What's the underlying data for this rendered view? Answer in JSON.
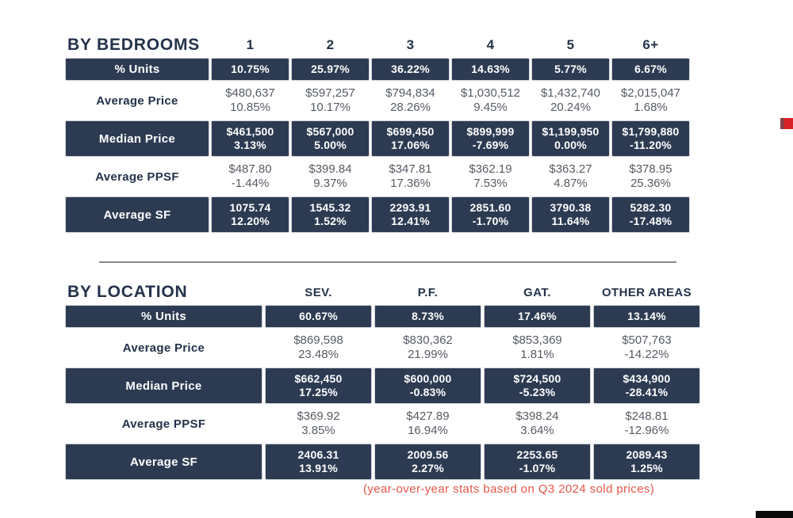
{
  "footer_note": "(year-over-year stats based on Q3 2024 sold prices)",
  "colors": {
    "navy": "#2d3b52",
    "title_navy": "#24324a",
    "note_red": "#e5554a",
    "accent_red": "#da2127",
    "divider_gray": "#85878c",
    "body_gray": "#565b64"
  },
  "sections": [
    {
      "id": "by-bedrooms",
      "title": "BY BEDROOMS",
      "columns": [
        "1",
        "2",
        "3",
        "4",
        "5",
        "6+"
      ],
      "rows": [
        {
          "label": "% Units",
          "style": "dark",
          "cells": [
            [
              "10.75%"
            ],
            [
              "25.97%"
            ],
            [
              "36.22%"
            ],
            [
              "14.63%"
            ],
            [
              "5.77%"
            ],
            [
              "6.67%"
            ]
          ]
        },
        {
          "label": "Average Price",
          "style": "light",
          "cells": [
            [
              "$480,637",
              "10.85%"
            ],
            [
              "$597,257",
              "10.17%"
            ],
            [
              "$794,834",
              "28.26%"
            ],
            [
              "$1,030,512",
              "9.45%"
            ],
            [
              "$1,432,740",
              "20.24%"
            ],
            [
              "$2,015,047",
              "1.68%"
            ]
          ]
        },
        {
          "label": "Median Price",
          "style": "dark",
          "cells": [
            [
              "$461,500",
              "3.13%"
            ],
            [
              "$567,000",
              "5.00%"
            ],
            [
              "$699,450",
              "17.06%"
            ],
            [
              "$899,999",
              "-7.69%"
            ],
            [
              "$1,199,950",
              "0.00%"
            ],
            [
              "$1,799,880",
              "-11.20%"
            ]
          ]
        },
        {
          "label": "Average PPSF",
          "style": "light",
          "cells": [
            [
              "$487.80",
              "-1.44%"
            ],
            [
              "$399.84",
              "9.37%"
            ],
            [
              "$347.81",
              "17.36%"
            ],
            [
              "$362.19",
              "7.53%"
            ],
            [
              "$363.27",
              "4.87%"
            ],
            [
              "$378.95",
              "25.36%"
            ]
          ]
        },
        {
          "label": "Average SF",
          "style": "dark",
          "cells": [
            [
              "1075.74",
              "12.20%"
            ],
            [
              "1545.32",
              "1.52%"
            ],
            [
              "2293.91",
              "12.41%"
            ],
            [
              "2851.60",
              "-1.70%"
            ],
            [
              "3790.38",
              "11.64%"
            ],
            [
              "5282.30",
              "-17.48%"
            ]
          ]
        }
      ]
    },
    {
      "id": "by-location",
      "title": "BY LOCATION",
      "columns": [
        "SEV.",
        "P.F.",
        "GAT.",
        "OTHER AREAS"
      ],
      "rows": [
        {
          "label": "% Units",
          "style": "dark",
          "cells": [
            [
              "60.67%"
            ],
            [
              "8.73%"
            ],
            [
              "17.46%"
            ],
            [
              "13.14%"
            ]
          ]
        },
        {
          "label": "Average Price",
          "style": "light",
          "cells": [
            [
              "$869,598",
              "23.48%"
            ],
            [
              "$830,362",
              "21.99%"
            ],
            [
              "$853,369",
              "1.81%"
            ],
            [
              "$507,763",
              "-14.22%"
            ]
          ]
        },
        {
          "label": "Median Price",
          "style": "dark",
          "cells": [
            [
              "$662,450",
              "17.25%"
            ],
            [
              "$600,000",
              "-0.83%"
            ],
            [
              "$724,500",
              "-5.23%"
            ],
            [
              "$434,900",
              "-28.41%"
            ]
          ]
        },
        {
          "label": "Average PPSF",
          "style": "light",
          "cells": [
            [
              "$369.92",
              "3.85%"
            ],
            [
              "$427.89",
              "16.94%"
            ],
            [
              "$398.24",
              "3.64%"
            ],
            [
              "$248.81",
              "-12.96%"
            ]
          ]
        },
        {
          "label": "Average SF",
          "style": "dark",
          "cells": [
            [
              "2406.31",
              "13.91%"
            ],
            [
              "2009.56",
              "2.27%"
            ],
            [
              "2253.65",
              "-1.07%"
            ],
            [
              "2089.43",
              "1.25%"
            ]
          ]
        }
      ]
    }
  ]
}
